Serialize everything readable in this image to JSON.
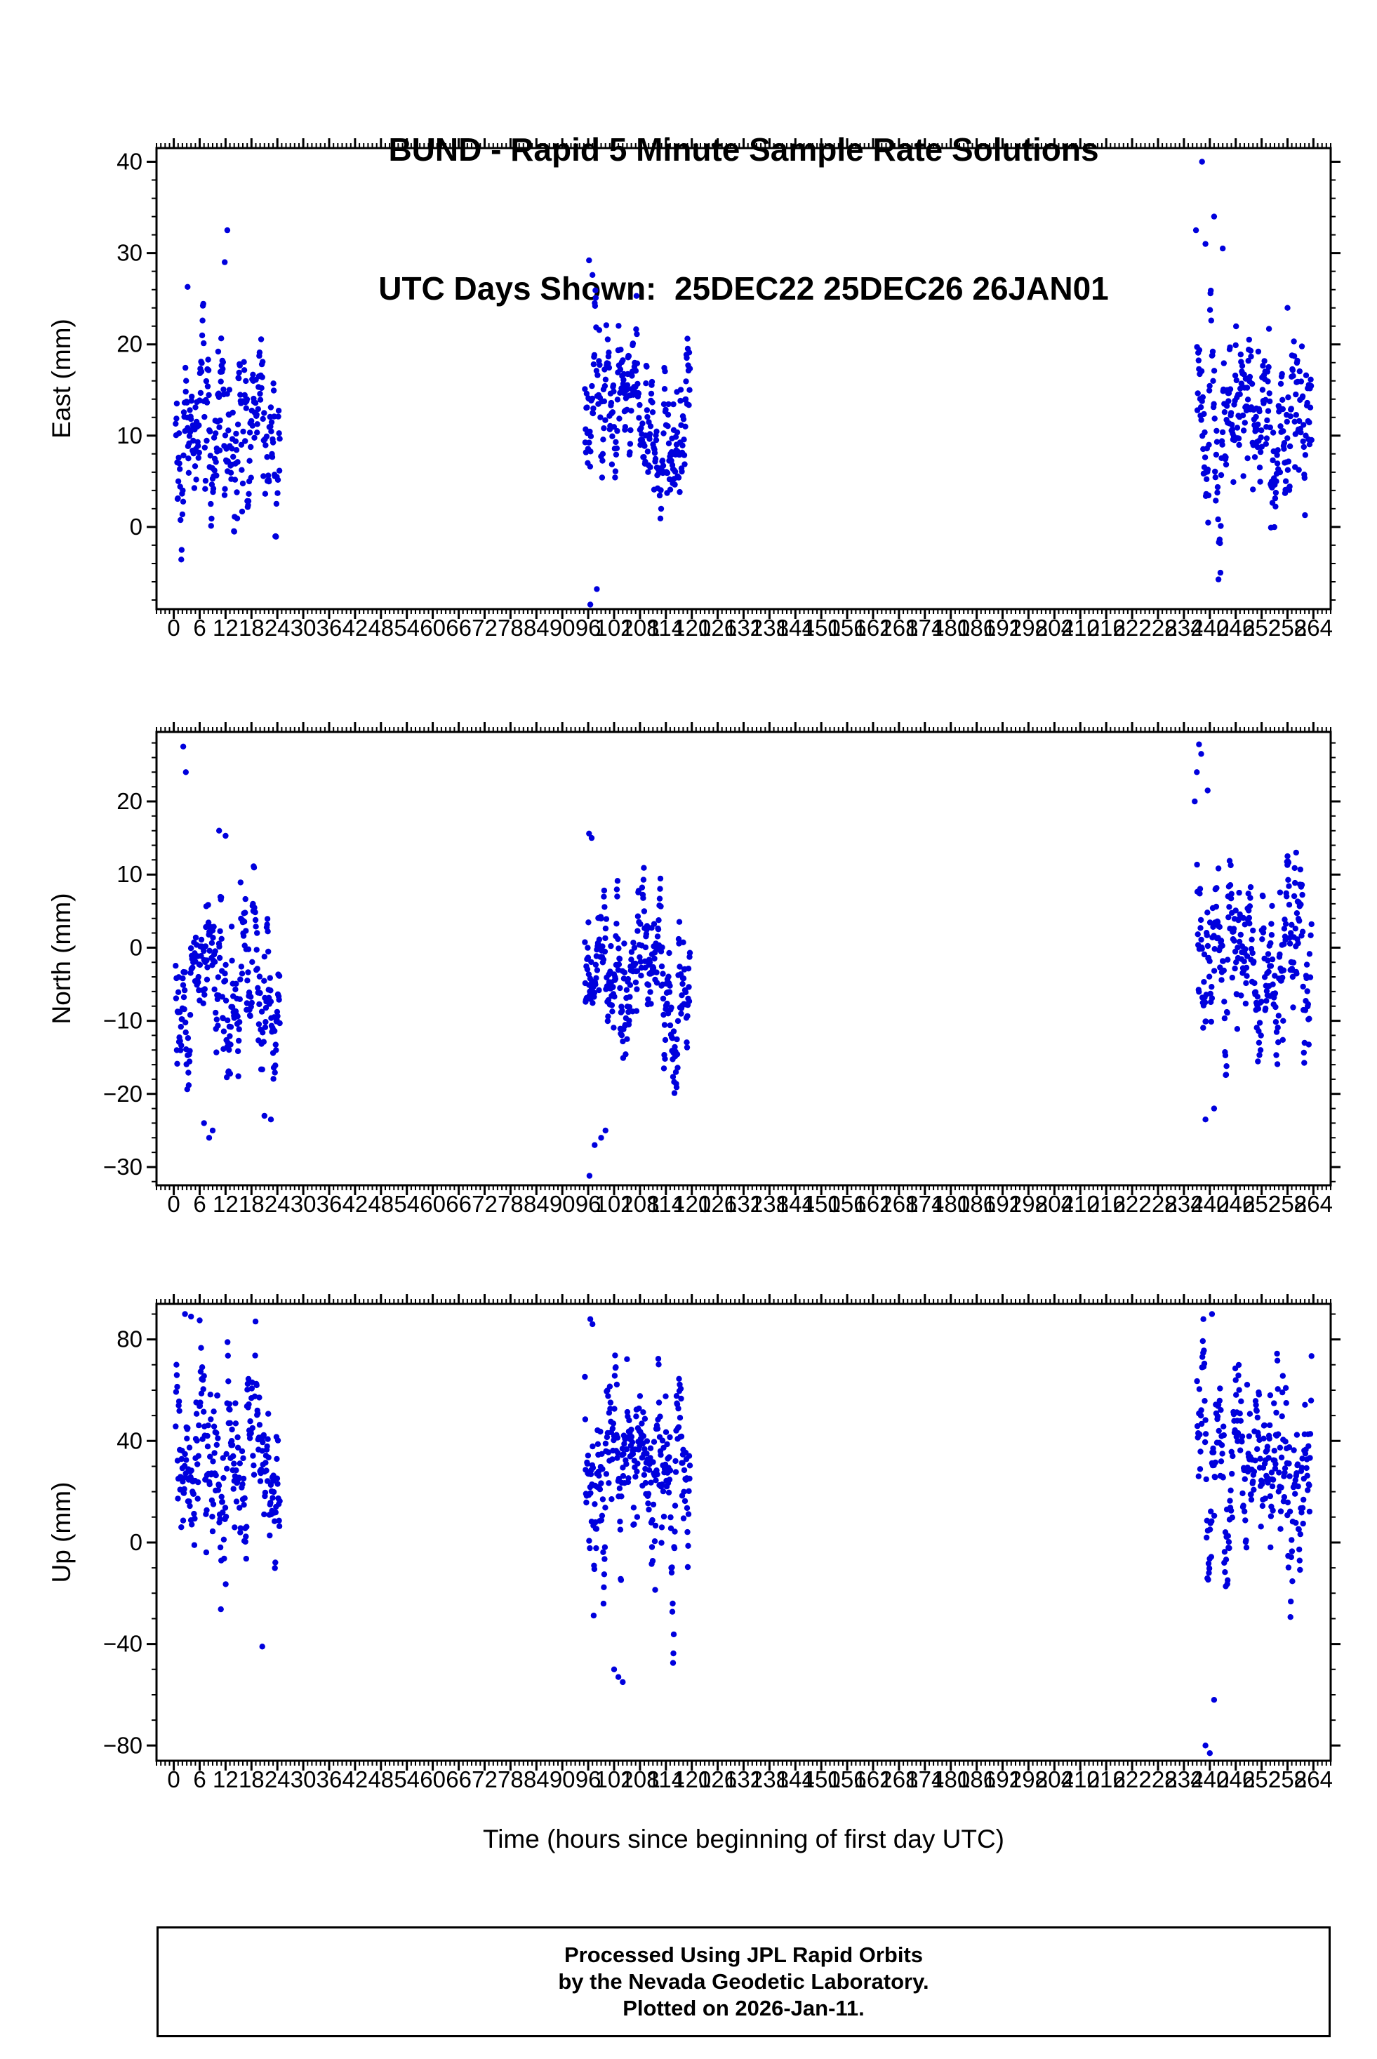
{
  "title": {
    "line1": "BUND - Rapid 5 Minute Sample Rate Solutions",
    "line2": "UTC Days Shown:  25DEC22 25DEC26 26JAN01"
  },
  "station": "BUND",
  "days_shown": [
    "25DEC22",
    "25DEC26",
    "26JAN01"
  ],
  "footer": {
    "line1": "Processed Using JPL Rapid Orbits",
    "line2": "by the Nevada Geodetic Laboratory.",
    "line3": "Plotted on 2026-Jan-11."
  },
  "chart_data": {
    "type": "scatter",
    "point_color": "#0000dd",
    "marker": "circle",
    "legend": "none",
    "grid": false,
    "x": {
      "label": "Time (hours since beginning of first day UTC)",
      "lim": [
        -4,
        268
      ],
      "minor_step": 1,
      "ticks": [
        0,
        6,
        12,
        18,
        24,
        30,
        36,
        42,
        48,
        54,
        60,
        66,
        72,
        78,
        84,
        90,
        96,
        102,
        108,
        114,
        120,
        126,
        132,
        138,
        144,
        150,
        156,
        162,
        168,
        174,
        180,
        186,
        192,
        198,
        204,
        210,
        216,
        222,
        228,
        234,
        240,
        246,
        252,
        258,
        264
      ]
    },
    "panels": [
      {
        "id": "east",
        "ylabel": "East (mm)",
        "ylim": [
          -9,
          41.5
        ],
        "yticks": [
          0,
          10,
          20,
          30,
          40
        ],
        "ytick_labels": [
          "0",
          "10",
          "20",
          "30",
          "40"
        ],
        "minor_step": 2,
        "clusters": [
          {
            "x_range": [
              0.4,
              24.6
            ],
            "count": 280,
            "mean": [
              12.5,
              11.5
            ],
            "std": 5.4,
            "y_range": [
              -5,
              26
            ]
          },
          {
            "x_range": [
              95.2,
              119.6
            ],
            "count": 300,
            "mean": [
              16,
              8.5
            ],
            "std": 4.6,
            "y_range": [
              -7,
              26
            ]
          },
          {
            "x_range": [
              237,
              263.6
            ],
            "count": 300,
            "mean": [
              14,
              10
            ],
            "std": 5.6,
            "y_range": [
              -6,
              30
            ]
          }
        ],
        "outliers": [
          [
            12.4,
            32.5
          ],
          [
            11.8,
            29
          ],
          [
            3.2,
            26.3
          ],
          [
            96.2,
            29.2
          ],
          [
            97,
            27.6
          ],
          [
            96.5,
            -8.5
          ],
          [
            98,
            -6.8
          ],
          [
            238.2,
            40
          ],
          [
            241,
            34
          ],
          [
            236.8,
            32.5
          ],
          [
            239,
            31
          ],
          [
            243,
            30.5
          ],
          [
            258,
            24
          ]
        ]
      },
      {
        "id": "north",
        "ylabel": "North (mm)",
        "ylim": [
          -32.5,
          29.5
        ],
        "yticks": [
          -30,
          -20,
          -10,
          0,
          10,
          20
        ],
        "ytick_labels": [
          "−30",
          "−20",
          "−10",
          "0",
          "10",
          "20"
        ],
        "minor_step": 2,
        "clusters": [
          {
            "x_range": [
              0.4,
              24.6
            ],
            "count": 280,
            "mean": [
              -5,
              -5.5
            ],
            "std": 6.0,
            "y_range": [
              -22,
              13
            ]
          },
          {
            "x_range": [
              95.2,
              119.6
            ],
            "count": 300,
            "mean": [
              -3.5,
              -3.5
            ],
            "std": 5.5,
            "y_range": [
              -20,
              12
            ]
          },
          {
            "x_range": [
              237,
              263.6
            ],
            "count": 300,
            "mean": [
              0,
              -4
            ],
            "std": 6.5,
            "y_range": [
              -18,
              12
            ]
          }
        ],
        "outliers": [
          [
            2.2,
            27.5
          ],
          [
            2.8,
            24
          ],
          [
            10.5,
            16
          ],
          [
            12,
            15.3
          ],
          [
            7,
            -24
          ],
          [
            8.2,
            -26
          ],
          [
            9,
            -25
          ],
          [
            21,
            -23
          ],
          [
            22.5,
            -23.5
          ],
          [
            96.3,
            -31.2
          ],
          [
            97.5,
            -27
          ],
          [
            99,
            -26
          ],
          [
            100,
            -25
          ],
          [
            96.2,
            15.6
          ],
          [
            96.8,
            15
          ],
          [
            237.5,
            27.8
          ],
          [
            238,
            26.5
          ],
          [
            237,
            24
          ],
          [
            239.5,
            21.5
          ],
          [
            236.5,
            20
          ],
          [
            239,
            -23.5
          ],
          [
            241,
            -22
          ],
          [
            260,
            13
          ],
          [
            258,
            12.5
          ]
        ]
      },
      {
        "id": "up",
        "ylabel": "Up (mm)",
        "ylim": [
          -86,
          94
        ],
        "yticks": [
          -80,
          -40,
          0,
          40,
          80
        ],
        "ytick_labels": [
          "−80",
          "−40",
          "0",
          "40",
          "80"
        ],
        "minor_step": 10,
        "clusters": [
          {
            "x_range": [
              0.4,
              24.6
            ],
            "count": 280,
            "mean": [
              26,
              22
            ],
            "std": 21,
            "y_range": [
              -40,
              88
            ]
          },
          {
            "x_range": [
              95.2,
              119.6
            ],
            "count": 300,
            "mean": [
              26,
              20
            ],
            "std": 21,
            "y_range": [
              -48,
              84
            ]
          },
          {
            "x_range": [
              237,
              263.6
            ],
            "count": 300,
            "mean": [
              20,
              24
            ],
            "std": 20,
            "y_range": [
              -55,
              86
            ]
          }
        ],
        "outliers": [
          [
            2.6,
            90
          ],
          [
            4,
            89
          ],
          [
            6,
            87.5
          ],
          [
            20.5,
            -41
          ],
          [
            96.5,
            88
          ],
          [
            97,
            86
          ],
          [
            103,
            -53
          ],
          [
            104,
            -55
          ],
          [
            102,
            -50
          ],
          [
            238.5,
            88
          ],
          [
            240.5,
            90
          ],
          [
            239,
            -80
          ],
          [
            240,
            -83
          ],
          [
            241,
            -62
          ],
          [
            254,
            58
          ]
        ]
      }
    ]
  }
}
